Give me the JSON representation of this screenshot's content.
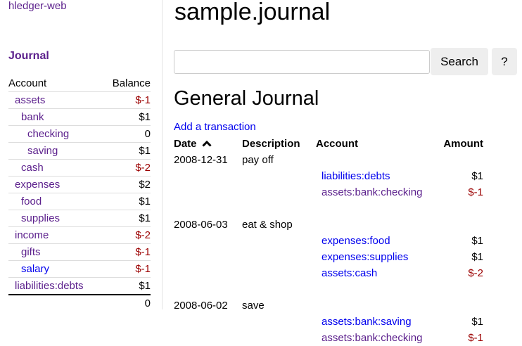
{
  "sidebar": {
    "brand": "hledger-web",
    "journal_link": "Journal",
    "headers": {
      "account": "Account",
      "balance": "Balance"
    },
    "accounts": [
      {
        "name": "assets",
        "depth": 1,
        "balance": "$-1",
        "negative": true,
        "visited": true
      },
      {
        "name": "bank",
        "depth": 2,
        "balance": "$1",
        "negative": false,
        "visited": true
      },
      {
        "name": "checking",
        "depth": 3,
        "balance": "0",
        "negative": false,
        "visited": true
      },
      {
        "name": "saving",
        "depth": 3,
        "balance": "$1",
        "negative": false,
        "visited": true
      },
      {
        "name": "cash",
        "depth": 2,
        "balance": "$-2",
        "negative": true,
        "visited": true
      },
      {
        "name": "expenses",
        "depth": 1,
        "balance": "$2",
        "negative": false,
        "visited": true
      },
      {
        "name": "food",
        "depth": 2,
        "balance": "$1",
        "negative": false,
        "visited": true
      },
      {
        "name": "supplies",
        "depth": 2,
        "balance": "$1",
        "negative": false,
        "visited": true
      },
      {
        "name": "income",
        "depth": 1,
        "balance": "$-2",
        "negative": true,
        "visited": true
      },
      {
        "name": "gifts",
        "depth": 2,
        "balance": "$-1",
        "negative": true,
        "visited": true
      },
      {
        "name": "salary",
        "depth": 2,
        "balance": "$-1",
        "negative": true,
        "visited": false
      },
      {
        "name": "liabilities:debts",
        "depth": 1,
        "balance": "$1",
        "negative": false,
        "visited": true
      }
    ],
    "total": "0"
  },
  "main": {
    "title": "sample.journal",
    "search": {
      "value": "",
      "placeholder": "",
      "button": "Search",
      "help": "?"
    },
    "heading": "General Journal",
    "add_transaction": "Add a transaction",
    "columns": {
      "date": "Date",
      "sort_icon": "chevron-up-icon",
      "description": "Description",
      "account": "Account",
      "amount": "Amount"
    },
    "transactions": [
      {
        "date": "2008-12-31",
        "description": "pay off",
        "postings": [
          {
            "account": "liabilities:debts",
            "amount": "$1",
            "negative": false,
            "visited": false
          },
          {
            "account": "assets:bank:checking",
            "amount": "$-1",
            "negative": true,
            "visited": true
          }
        ]
      },
      {
        "date": "2008-06-03",
        "description": "eat & shop",
        "postings": [
          {
            "account": "expenses:food",
            "amount": "$1",
            "negative": false,
            "visited": false
          },
          {
            "account": "expenses:supplies",
            "amount": "$1",
            "negative": false,
            "visited": false
          },
          {
            "account": "assets:cash",
            "amount": "$-2",
            "negative": true,
            "visited": false
          }
        ]
      },
      {
        "date": "2008-06-02",
        "description": "save",
        "postings": [
          {
            "account": "assets:bank:saving",
            "amount": "$1",
            "negative": false,
            "visited": false
          },
          {
            "account": "assets:bank:checking",
            "amount": "$-1",
            "negative": true,
            "visited": true
          }
        ]
      }
    ]
  },
  "colors": {
    "link": "#0000ee",
    "visited": "#5b1f8c",
    "negative": "#9b0000"
  }
}
